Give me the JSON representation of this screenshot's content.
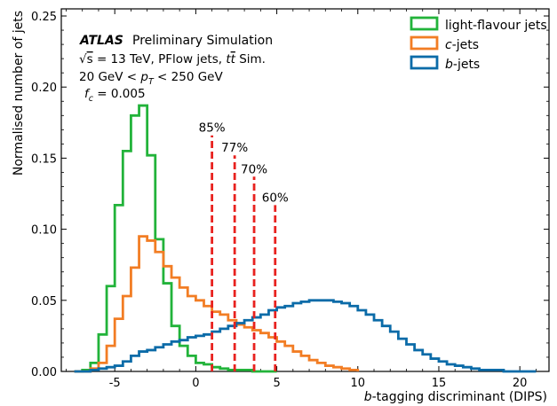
{
  "chart_data": {
    "type": "histogram-step",
    "xlabel": "b-tagging discriminant (DIPS)",
    "ylabel": "Normalised number of jets",
    "xlim": [
      -8.3,
      21.8
    ],
    "ylim": [
      0,
      0.255
    ],
    "xticks": [
      -5,
      0,
      5,
      10,
      15,
      20
    ],
    "yticks": [
      0.0,
      0.05,
      0.1,
      0.15,
      0.2,
      0.25
    ],
    "ytick_labels": [
      "0.00",
      "0.05",
      "0.10",
      "0.15",
      "0.20",
      "0.25"
    ],
    "bin_start": -7.5,
    "bin_width": 0.5,
    "series": [
      {
        "name": "light-flavour jets",
        "color": "#22b33a",
        "values": [
          0.0,
          0.001,
          0.006,
          0.026,
          0.06,
          0.117,
          0.155,
          0.18,
          0.187,
          0.152,
          0.093,
          0.062,
          0.032,
          0.018,
          0.011,
          0.006,
          0.005,
          0.003,
          0.002,
          0.001,
          0.001,
          0.001,
          0.0,
          0.0,
          0.0
        ]
      },
      {
        "name": "c-jets",
        "color": "#f27d24",
        "values": [
          0.0,
          0.0,
          0.002,
          0.006,
          0.018,
          0.037,
          0.053,
          0.073,
          0.095,
          0.092,
          0.084,
          0.074,
          0.066,
          0.059,
          0.053,
          0.05,
          0.046,
          0.042,
          0.04,
          0.036,
          0.033,
          0.031,
          0.029,
          0.027,
          0.024,
          0.021,
          0.018,
          0.014,
          0.011,
          0.008,
          0.006,
          0.004,
          0.003,
          0.002,
          0.001
        ]
      },
      {
        "name": "b-jets",
        "color": "#0b6ba8",
        "values": [
          0.0,
          0.0,
          0.001,
          0.002,
          0.003,
          0.004,
          0.007,
          0.011,
          0.014,
          0.015,
          0.017,
          0.019,
          0.021,
          0.022,
          0.024,
          0.025,
          0.026,
          0.028,
          0.03,
          0.032,
          0.034,
          0.036,
          0.038,
          0.04,
          0.043,
          0.045,
          0.046,
          0.048,
          0.049,
          0.05,
          0.05,
          0.05,
          0.049,
          0.048,
          0.046,
          0.043,
          0.04,
          0.036,
          0.032,
          0.028,
          0.023,
          0.019,
          0.015,
          0.012,
          0.009,
          0.007,
          0.005,
          0.004,
          0.003,
          0.002,
          0.001,
          0.001,
          0.001,
          0.0,
          0.0,
          0.0,
          0.0
        ]
      }
    ],
    "working_points": [
      {
        "label": "85%",
        "x": 1.0,
        "y_top": 0.166
      },
      {
        "label": "77%",
        "x": 2.4,
        "y_top": 0.152
      },
      {
        "label": "70%",
        "x": 3.6,
        "y_top": 0.137
      },
      {
        "label": "60%",
        "x": 4.9,
        "y_top": 0.117
      }
    ],
    "wp_line_color": "#e8221f",
    "legend_position": "top-right",
    "annotations": {
      "atlas": "ATLAS",
      "status": "Preliminary Simulation",
      "line1": "√s = 13 TeV, PFlow jets, tt̄ Sim.",
      "line2": "20 GeV < pT < 250 GeV",
      "line3": "fc = 0.005"
    }
  }
}
